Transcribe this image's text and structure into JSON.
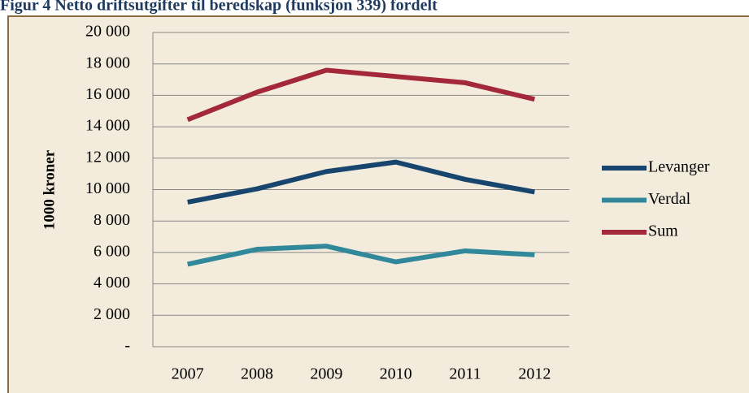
{
  "chart_data": {
    "type": "line",
    "title": "Figur 4 Netto driftsutgifter til beredskap (funksjon 339) fordelt",
    "ylabel": "1000 kroner",
    "categories": [
      "2007",
      "2008",
      "2009",
      "2010",
      "2011",
      "2012"
    ],
    "series": [
      {
        "name": "Levanger",
        "color": "#17456e",
        "values": [
          9200,
          10050,
          11150,
          11750,
          10650,
          9850
        ]
      },
      {
        "name": "Verdal",
        "color": "#31889b",
        "values": [
          5250,
          6200,
          6400,
          5400,
          6100,
          5850
        ]
      },
      {
        "name": "Sum",
        "color": "#a3283a",
        "values": [
          14450,
          16200,
          17600,
          17200,
          16800,
          15750
        ]
      }
    ],
    "ylim": [
      0,
      20000
    ],
    "yticks": [
      {
        "value": 0,
        "label": "-"
      },
      {
        "value": 2000,
        "label": "2 000"
      },
      {
        "value": 4000,
        "label": "4 000"
      },
      {
        "value": 6000,
        "label": "6 000"
      },
      {
        "value": 8000,
        "label": "8 000"
      },
      {
        "value": 10000,
        "label": "10 000"
      },
      {
        "value": 12000,
        "label": "12 000"
      },
      {
        "value": 14000,
        "label": "14 000"
      },
      {
        "value": 16000,
        "label": "16 000"
      },
      {
        "value": 18000,
        "label": "18 000"
      },
      {
        "value": 20000,
        "label": "20 000"
      }
    ],
    "grid": true,
    "legend": "right"
  }
}
